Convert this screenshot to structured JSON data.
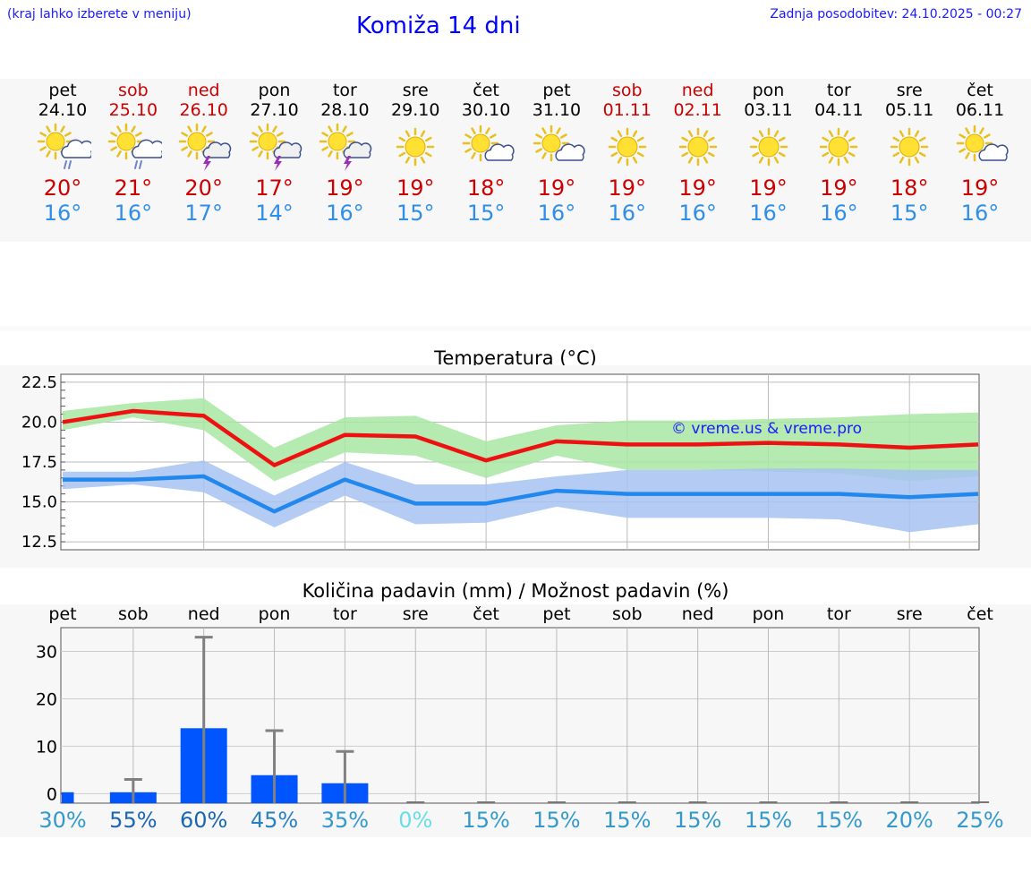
{
  "header": {
    "hint": "(kraj lahko izberete v meniju)",
    "title": "Komiža 14 dni",
    "updated": "Zadnja posodobitev: 24.10.2025 - 00:27"
  },
  "days": [
    {
      "name": "pet",
      "date": "24.10",
      "weekend": false,
      "icon": "sun-cloud-rain-icon",
      "tmax": "20°",
      "tmin": "16°",
      "pct": "30%",
      "pct_color": "#3399cc"
    },
    {
      "name": "sob",
      "date": "25.10",
      "weekend": true,
      "icon": "sun-cloud-rain-icon",
      "tmax": "21°",
      "tmin": "16°",
      "pct": "55%",
      "pct_color": "#1a66b3"
    },
    {
      "name": "ned",
      "date": "26.10",
      "weekend": true,
      "icon": "sun-cloud-thunder-icon",
      "tmax": "20°",
      "tmin": "17°",
      "pct": "60%",
      "pct_color": "#1a66b3"
    },
    {
      "name": "pon",
      "date": "27.10",
      "weekend": false,
      "icon": "sun-cloud-thunder-icon",
      "tmax": "17°",
      "tmin": "14°",
      "pct": "45%",
      "pct_color": "#2680c2"
    },
    {
      "name": "tor",
      "date": "28.10",
      "weekend": false,
      "icon": "sun-cloud-thunder-icon",
      "tmax": "19°",
      "tmin": "16°",
      "pct": "35%",
      "pct_color": "#3399cc"
    },
    {
      "name": "sre",
      "date": "29.10",
      "weekend": false,
      "icon": "sun-icon",
      "tmax": "19°",
      "tmin": "15°",
      "pct": "0%",
      "pct_color": "#66dde8"
    },
    {
      "name": "čet",
      "date": "30.10",
      "weekend": false,
      "icon": "sun-cloud-icon",
      "tmax": "18°",
      "tmin": "15°",
      "pct": "15%",
      "pct_color": "#3399cc"
    },
    {
      "name": "pet",
      "date": "31.10",
      "weekend": false,
      "icon": "sun-cloud-icon",
      "tmax": "19°",
      "tmin": "16°",
      "pct": "15%",
      "pct_color": "#3399cc"
    },
    {
      "name": "sob",
      "date": "01.11",
      "weekend": true,
      "icon": "sun-icon",
      "tmax": "19°",
      "tmin": "16°",
      "pct": "15%",
      "pct_color": "#3399cc"
    },
    {
      "name": "ned",
      "date": "02.11",
      "weekend": true,
      "icon": "sun-icon",
      "tmax": "19°",
      "tmin": "16°",
      "pct": "15%",
      "pct_color": "#3399cc"
    },
    {
      "name": "pon",
      "date": "03.11",
      "weekend": false,
      "icon": "sun-icon",
      "tmax": "19°",
      "tmin": "16°",
      "pct": "15%",
      "pct_color": "#3399cc"
    },
    {
      "name": "tor",
      "date": "04.11",
      "weekend": false,
      "icon": "sun-icon",
      "tmax": "19°",
      "tmin": "16°",
      "pct": "15%",
      "pct_color": "#3399cc"
    },
    {
      "name": "sre",
      "date": "05.11",
      "weekend": false,
      "icon": "sun-icon",
      "tmax": "18°",
      "tmin": "15°",
      "pct": "20%",
      "pct_color": "#3399cc"
    },
    {
      "name": "čet",
      "date": "06.11",
      "weekend": false,
      "icon": "sun-cloud-icon",
      "tmax": "19°",
      "tmin": "16°",
      "pct": "25%",
      "pct_color": "#3399cc"
    }
  ],
  "chart_data": [
    {
      "type": "line",
      "title": "Temperatura (°C)",
      "ylim": [
        12,
        23
      ],
      "yticks": [
        "22.5",
        "20.0",
        "17.5",
        "15.0",
        "12.5"
      ],
      "ytick_values": [
        22.5,
        20,
        17.5,
        15,
        12.5
      ],
      "grid": true,
      "watermark": "© vreme.us & vreme.pro",
      "series": [
        {
          "role": "max",
          "color": "#ee1111",
          "band_color": "#a8e6a3",
          "values": [
            20.0,
            20.7,
            20.4,
            17.3,
            19.2,
            19.1,
            17.6,
            18.8,
            18.6,
            18.6,
            18.7,
            18.6,
            18.4,
            18.6
          ],
          "band_low": [
            19.5,
            20.3,
            19.5,
            16.3,
            18.1,
            17.9,
            16.5,
            17.9,
            17.0,
            17.0,
            16.9,
            16.8,
            16.3,
            16.6
          ],
          "band_high": [
            20.7,
            21.2,
            21.5,
            18.4,
            20.3,
            20.4,
            18.8,
            19.8,
            20.1,
            20.1,
            20.2,
            20.3,
            20.5,
            20.6
          ]
        },
        {
          "role": "min",
          "color": "#2288ee",
          "band_color": "#a7c3f2",
          "values": [
            16.4,
            16.4,
            16.6,
            14.4,
            16.4,
            14.9,
            14.9,
            15.7,
            15.5,
            15.5,
            15.5,
            15.5,
            15.3,
            15.5
          ],
          "band_low": [
            15.8,
            16.1,
            15.6,
            13.4,
            15.4,
            13.6,
            13.7,
            14.7,
            14.0,
            14.0,
            14.0,
            13.9,
            13.1,
            13.6
          ],
          "band_high": [
            16.9,
            16.9,
            17.6,
            15.4,
            17.5,
            16.1,
            16.1,
            16.6,
            17.0,
            17.0,
            17.1,
            17.1,
            17.0,
            17.0
          ]
        }
      ]
    },
    {
      "type": "bar",
      "title": "Količina padavin (mm) / Možnost padavin (%)",
      "categories": [
        "pet",
        "sob",
        "ned",
        "pon",
        "tor",
        "sre",
        "čet",
        "pet",
        "sob",
        "ned",
        "pon",
        "tor",
        "sre",
        "čet"
      ],
      "values": [
        0.3,
        0.3,
        13.8,
        3.9,
        2.2,
        0,
        0,
        0,
        0,
        0,
        0,
        0,
        0,
        0
      ],
      "error_high": [
        0,
        3.0,
        33.0,
        13.3,
        8.9,
        0,
        0,
        0,
        0,
        0,
        0,
        0,
        0,
        0
      ],
      "ylim": [
        -2,
        35
      ],
      "yticks": [
        "30",
        "20",
        "10",
        "0"
      ],
      "ytick_values": [
        30,
        20,
        10,
        0
      ],
      "bar_color": "#0055ff",
      "error_color": "#808080",
      "grid": true
    }
  ]
}
